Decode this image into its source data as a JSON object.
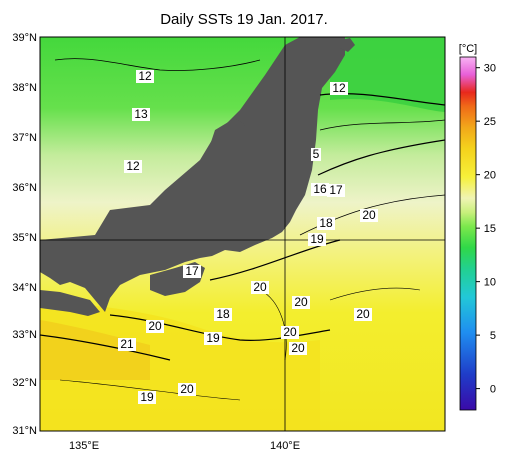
{
  "title": "Daily SSTs 19 Jan. 2017.",
  "lat_labels": [
    "39°N",
    "38°N",
    "37°N",
    "36°N",
    "35°N",
    "34°N",
    "33°N",
    "32°N",
    "31°N"
  ],
  "lon_labels": [
    "135°E",
    "140°E"
  ],
  "colorbar": {
    "unit": "[°C]",
    "ticks": [
      "30",
      "25",
      "20",
      "15",
      "10",
      "5",
      "0"
    ],
    "min": -2,
    "max": 31,
    "colors": [
      "#3a0aa8",
      "#1f3cc8",
      "#1f8ef0",
      "#22c8d8",
      "#22d090",
      "#30d848",
      "#7ce84c",
      "#c8f07c",
      "#f0f4b4",
      "#f6f03a",
      "#f4d21c",
      "#f2a81a",
      "#f06a18",
      "#e8281c",
      "#e860d8",
      "#f8b4f4"
    ]
  },
  "contour_labels": [
    {
      "text": "12"
    },
    {
      "text": "13"
    },
    {
      "text": "12"
    },
    {
      "text": "12"
    },
    {
      "text": "5"
    },
    {
      "text": "16"
    },
    {
      "text": "17"
    },
    {
      "text": "18"
    },
    {
      "text": "19"
    },
    {
      "text": "20"
    },
    {
      "text": "17"
    },
    {
      "text": "20"
    },
    {
      "text": "18"
    },
    {
      "text": "20"
    },
    {
      "text": "20"
    },
    {
      "text": "20"
    },
    {
      "text": "20"
    },
    {
      "text": "19"
    },
    {
      "text": "20"
    },
    {
      "text": "21"
    },
    {
      "text": "20"
    },
    {
      "text": "19"
    }
  ]
}
